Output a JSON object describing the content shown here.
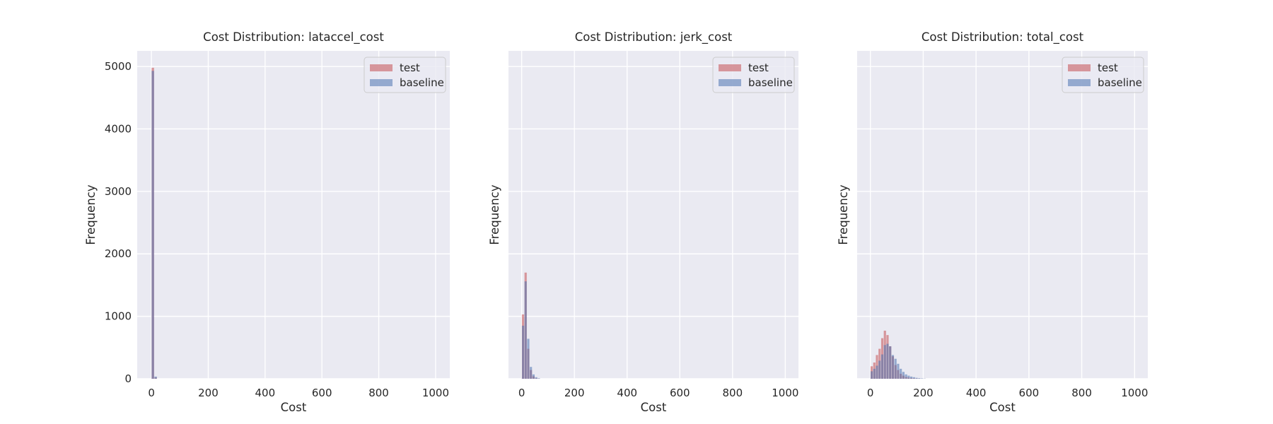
{
  "figure": {
    "x_axis_label": "Cost",
    "y_axis_label": "Frequency",
    "legend": [
      "test",
      "baseline"
    ],
    "colors": {
      "test": "#c44e52",
      "baseline": "#4c72b0",
      "panel_bg": "#eaeaf2",
      "grid": "#ffffff"
    }
  },
  "chart_data": [
    {
      "type": "bar",
      "title": "Cost Distribution: lataccel_cost",
      "xlabel": "Cost",
      "ylabel": "Frequency",
      "xlim": [
        -50,
        1050
      ],
      "ylim": [
        0,
        5250
      ],
      "xticks": [
        0,
        200,
        400,
        600,
        800,
        1000
      ],
      "yticks": [
        0,
        1000,
        2000,
        3000,
        4000,
        5000
      ],
      "y_tick_labels_shown": true,
      "bin_width": 10,
      "grid": true,
      "legend_position": "top-right",
      "series": [
        {
          "name": "test",
          "bin_starts": [
            0,
            10
          ],
          "values": [
            4980,
            20
          ]
        },
        {
          "name": "baseline",
          "bin_starts": [
            0,
            10
          ],
          "values": [
            4930,
            35
          ]
        }
      ]
    },
    {
      "type": "bar",
      "title": "Cost Distribution: jerk_cost",
      "xlabel": "Cost",
      "ylabel": "Frequency",
      "xlim": [
        -50,
        1050
      ],
      "ylim": [
        0,
        5250
      ],
      "xticks": [
        0,
        200,
        400,
        600,
        800,
        1000
      ],
      "yticks": [
        0,
        1000,
        2000,
        3000,
        4000,
        5000
      ],
      "y_tick_labels_shown": false,
      "bin_width": 10,
      "grid": true,
      "legend_position": "top-right",
      "series": [
        {
          "name": "test",
          "bin_starts": [
            0,
            10,
            20,
            30,
            40,
            50,
            60
          ],
          "values": [
            1030,
            1700,
            480,
            140,
            40,
            10,
            3
          ]
        },
        {
          "name": "baseline",
          "bin_starts": [
            0,
            10,
            20,
            30,
            40,
            50,
            60
          ],
          "values": [
            850,
            1560,
            640,
            190,
            70,
            25,
            8
          ]
        }
      ]
    },
    {
      "type": "bar",
      "title": "Cost Distribution: total_cost",
      "xlabel": "Cost",
      "ylabel": "Frequency",
      "xlim": [
        -50,
        1050
      ],
      "ylim": [
        0,
        5250
      ],
      "xticks": [
        0,
        200,
        400,
        600,
        800,
        1000
      ],
      "yticks": [
        0,
        1000,
        2000,
        3000,
        4000,
        5000
      ],
      "y_tick_labels_shown": false,
      "bin_width": 10,
      "grid": true,
      "legend_position": "top-right",
      "series": [
        {
          "name": "test",
          "bin_starts": [
            0,
            10,
            20,
            30,
            40,
            50,
            60,
            70,
            80,
            90,
            100,
            110,
            120,
            130,
            140,
            150,
            160,
            170,
            180,
            190,
            200
          ],
          "values": [
            200,
            260,
            380,
            480,
            650,
            770,
            700,
            520,
            360,
            220,
            140,
            80,
            50,
            30,
            20,
            12,
            8,
            5,
            3,
            2,
            1
          ]
        },
        {
          "name": "baseline",
          "bin_starts": [
            0,
            10,
            20,
            30,
            40,
            50,
            60,
            70,
            80,
            90,
            100,
            110,
            120,
            130,
            140,
            150,
            160,
            170,
            180,
            190,
            200
          ],
          "values": [
            120,
            160,
            210,
            290,
            390,
            540,
            560,
            520,
            380,
            320,
            240,
            160,
            110,
            70,
            50,
            35,
            25,
            15,
            10,
            6,
            3
          ]
        }
      ]
    }
  ]
}
